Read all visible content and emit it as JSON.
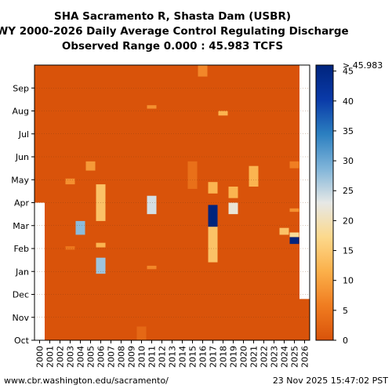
{
  "header": {
    "title_line1": "SHA Sacramento R, Shasta Dam (USBR)",
    "title_line2": "WY 2000-2026 Daily Average Control Regulating Discharge",
    "title_line3": "Observed Range 0.000 : 45.983 TCFS"
  },
  "footer": {
    "source": "www.cbr.washington.edu/sacramento/",
    "timestamp": "23 Nov 2025 15:47:02 PST"
  },
  "colors": {
    "base": "#d9530a",
    "missing": "#ffffff",
    "colormap_stops": [
      "#d9530a",
      "#f07c20",
      "#fbb04a",
      "#fcd98c",
      "#e6e8e6",
      "#7fb4d9",
      "#2b7fc0",
      "#0a3aa8",
      "#00247d"
    ]
  },
  "chart_data": {
    "type": "heatmap",
    "title": "SHA Sacramento R, Shasta Dam (USBR) WY 2000-2026 Daily Average Control Regulating Discharge",
    "unit": "TCFS",
    "observed_range": [
      0.0,
      45.983
    ],
    "x_categories": [
      "2000",
      "2001",
      "2002",
      "2003",
      "2004",
      "2005",
      "2006",
      "2007",
      "2008",
      "2009",
      "2010",
      "2011",
      "2012",
      "2013",
      "2014",
      "2015",
      "2016",
      "2017",
      "2018",
      "2019",
      "2020",
      "2021",
      "2022",
      "2023",
      "2024",
      "2025",
      "2026"
    ],
    "y_categories": [
      "Oct",
      "Nov",
      "Dec",
      "Jan",
      "Feb",
      "Mar",
      "Apr",
      "May",
      "Jun",
      "Jul",
      "Aug",
      "Sep"
    ],
    "colorbar": {
      "ticks": [
        0,
        5,
        10,
        15,
        20,
        25,
        30,
        35,
        40,
        45
      ],
      "max_label": "> 45.983",
      "range": [
        0,
        46
      ]
    },
    "typical_value": 0,
    "missing_periods": [
      {
        "year": "2000",
        "from_month": 0,
        "to_month": 6.0
      },
      {
        "year": "2026",
        "from_month": 1.8,
        "to_month": 12
      }
    ],
    "notable_flows": [
      {
        "year": "2003",
        "from_month": 6.8,
        "to_month": 7.05,
        "value": 8
      },
      {
        "year": "2003",
        "from_month": 3.95,
        "to_month": 4.1,
        "value": 5
      },
      {
        "year": "2004",
        "from_month": 4.6,
        "to_month": 5.2,
        "value": 28
      },
      {
        "year": "2005",
        "from_month": 7.4,
        "to_month": 7.8,
        "value": 9
      },
      {
        "year": "2006",
        "from_month": 2.9,
        "to_month": 3.6,
        "value": 27
      },
      {
        "year": "2006",
        "from_month": 4.05,
        "to_month": 4.25,
        "value": 12
      },
      {
        "year": "2006",
        "from_month": 5.2,
        "to_month": 6.8,
        "value": 14
      },
      {
        "year": "2010",
        "from_month": 0.0,
        "to_month": 0.6,
        "value": 3
      },
      {
        "year": "2011",
        "from_month": 3.1,
        "to_month": 3.25,
        "value": 7
      },
      {
        "year": "2011",
        "from_month": 5.5,
        "to_month": 6.3,
        "value": 24
      },
      {
        "year": "2011",
        "from_month": 10.1,
        "to_month": 10.25,
        "value": 8
      },
      {
        "year": "2015",
        "from_month": 6.6,
        "to_month": 7.8,
        "value": 4
      },
      {
        "year": "2016",
        "from_month": 11.5,
        "to_month": 12.0,
        "value": 7
      },
      {
        "year": "2017",
        "from_month": 3.4,
        "to_month": 5.0,
        "value": 14
      },
      {
        "year": "2017",
        "from_month": 4.95,
        "to_month": 5.9,
        "value": 46
      },
      {
        "year": "2017",
        "from_month": 6.4,
        "to_month": 6.9,
        "value": 12
      },
      {
        "year": "2018",
        "from_month": 9.8,
        "to_month": 10.0,
        "value": 12
      },
      {
        "year": "2019",
        "from_month": 5.5,
        "to_month": 6.0,
        "value": 22
      },
      {
        "year": "2019",
        "from_month": 6.2,
        "to_month": 6.7,
        "value": 12
      },
      {
        "year": "2021",
        "from_month": 6.7,
        "to_month": 7.6,
        "value": 12
      },
      {
        "year": "2024",
        "from_month": 4.6,
        "to_month": 4.9,
        "value": 14
      },
      {
        "year": "2025",
        "from_month": 4.2,
        "to_month": 4.5,
        "value": 46
      },
      {
        "year": "2025",
        "from_month": 4.5,
        "to_month": 4.7,
        "value": 18
      },
      {
        "year": "2025",
        "from_month": 5.6,
        "to_month": 5.75,
        "value": 8
      },
      {
        "year": "2025",
        "from_month": 7.5,
        "to_month": 7.8,
        "value": 6
      }
    ]
  }
}
